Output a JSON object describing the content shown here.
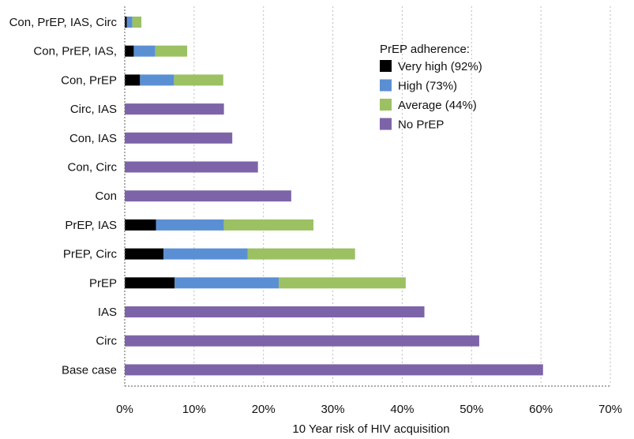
{
  "chart_data": {
    "type": "bar",
    "orientation": "horizontal",
    "stacked": true,
    "title": "",
    "xlabel": "10 Year risk of HIV acquisition",
    "ylabel": "",
    "xlim": [
      0,
      70
    ],
    "x_ticks": [
      "0%",
      "10%",
      "20%",
      "30%",
      "40%",
      "50%",
      "60%",
      "70%"
    ],
    "x_tick_values": [
      0,
      10,
      20,
      30,
      40,
      50,
      60,
      70
    ],
    "grid": "vertical dotted",
    "legend_position": "top-right",
    "categories": [
      "Con, PrEP, IAS, Circ",
      "Con, PrEP, IAS,",
      "Con, PrEP",
      "Circ, IAS",
      "Con, IAS",
      "Con, Circ",
      "Con",
      "PrEP, IAS",
      "PrEP, Circ",
      "PrEP",
      "IAS",
      "Circ",
      "Base case"
    ],
    "legend_title": "PrEP adherence:",
    "series": [
      {
        "name": "Very high (92%)",
        "color": "#000000",
        "values": [
          0.3,
          1.3,
          2.2,
          0,
          0,
          0,
          0,
          4.5,
          5.6,
          7.2,
          0,
          0,
          0
        ]
      },
      {
        "name": "High (73%)",
        "color": "#5b8fd4",
        "values": [
          0.8,
          3.1,
          4.9,
          0,
          0,
          0,
          0,
          9.8,
          12.1,
          15.0,
          0,
          0,
          0
        ]
      },
      {
        "name": "Average (44%)",
        "color": "#9bc162",
        "values": [
          1.3,
          4.6,
          7.1,
          0,
          0,
          0,
          0,
          12.9,
          15.5,
          18.3,
          0,
          0,
          0
        ]
      },
      {
        "name": "No PrEP",
        "color": "#7d64a8",
        "values": [
          0,
          0,
          0,
          14.3,
          15.5,
          19.2,
          24.0,
          0,
          0,
          0,
          43.2,
          51.1,
          60.3
        ]
      }
    ]
  }
}
